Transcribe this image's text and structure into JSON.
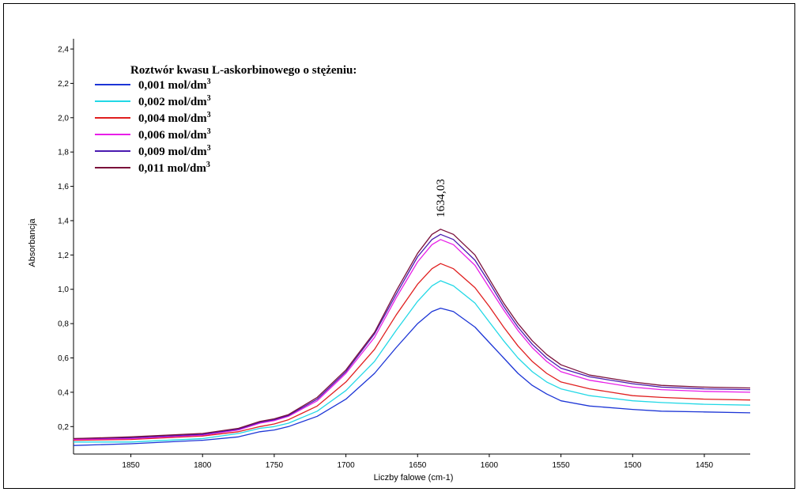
{
  "chart_data": {
    "type": "line",
    "xlabel": "Liczby falowe (cm-1)",
    "ylabel": "Absorbancja",
    "xlim": [
      1890,
      1418
    ],
    "ylim": [
      0.04,
      2.46
    ],
    "x_reversed": true,
    "grid": false,
    "legend_position": "top-left",
    "legend_title": "Roztwór kwasu L-askorbinowego o stężeniu:",
    "x_ticks": [
      1850,
      1800,
      1750,
      1700,
      1650,
      1600,
      1550,
      1500,
      1450
    ],
    "y_ticks": [
      "0,2",
      "0,4",
      "0,6",
      "0,8",
      "1,0",
      "1,2",
      "1,4",
      "1,6",
      "1,8",
      "2,0",
      "2,2",
      "2,4"
    ],
    "annotation": {
      "text": "1634,03",
      "x": 1634.03
    },
    "series": [
      {
        "name": "0,001 mol/dm3",
        "unit_base": "0,001 mol/dm",
        "unit_sup": "3",
        "color": "#1c35d6",
        "points": [
          [
            1890,
            0.09
          ],
          [
            1850,
            0.1
          ],
          [
            1800,
            0.12
          ],
          [
            1775,
            0.14
          ],
          [
            1760,
            0.17
          ],
          [
            1750,
            0.18
          ],
          [
            1740,
            0.2
          ],
          [
            1720,
            0.26
          ],
          [
            1700,
            0.36
          ],
          [
            1680,
            0.51
          ],
          [
            1665,
            0.66
          ],
          [
            1650,
            0.8
          ],
          [
            1640,
            0.87
          ],
          [
            1634,
            0.89
          ],
          [
            1625,
            0.87
          ],
          [
            1610,
            0.78
          ],
          [
            1600,
            0.69
          ],
          [
            1590,
            0.6
          ],
          [
            1580,
            0.51
          ],
          [
            1570,
            0.44
          ],
          [
            1560,
            0.39
          ],
          [
            1550,
            0.35
          ],
          [
            1530,
            0.32
          ],
          [
            1500,
            0.3
          ],
          [
            1480,
            0.29
          ],
          [
            1450,
            0.285
          ],
          [
            1418,
            0.28
          ]
        ]
      },
      {
        "name": "0,002 mol/dm3",
        "unit_base": "0,002 mol/dm",
        "unit_sup": "3",
        "color": "#22d8e6",
        "points": [
          [
            1890,
            0.11
          ],
          [
            1850,
            0.11
          ],
          [
            1800,
            0.13
          ],
          [
            1775,
            0.16
          ],
          [
            1760,
            0.19
          ],
          [
            1750,
            0.2
          ],
          [
            1740,
            0.22
          ],
          [
            1720,
            0.29
          ],
          [
            1700,
            0.41
          ],
          [
            1680,
            0.58
          ],
          [
            1665,
            0.76
          ],
          [
            1650,
            0.93
          ],
          [
            1640,
            1.02
          ],
          [
            1634,
            1.05
          ],
          [
            1625,
            1.02
          ],
          [
            1610,
            0.92
          ],
          [
            1600,
            0.81
          ],
          [
            1590,
            0.7
          ],
          [
            1580,
            0.6
          ],
          [
            1570,
            0.52
          ],
          [
            1560,
            0.46
          ],
          [
            1550,
            0.42
          ],
          [
            1530,
            0.38
          ],
          [
            1500,
            0.35
          ],
          [
            1480,
            0.34
          ],
          [
            1450,
            0.33
          ],
          [
            1418,
            0.325
          ]
        ]
      },
      {
        "name": "0,004 mol/dm3",
        "unit_base": "0,004 mol/dm",
        "unit_sup": "3",
        "color": "#e01f1f",
        "points": [
          [
            1890,
            0.12
          ],
          [
            1850,
            0.125
          ],
          [
            1800,
            0.145
          ],
          [
            1775,
            0.17
          ],
          [
            1760,
            0.2
          ],
          [
            1750,
            0.215
          ],
          [
            1740,
            0.24
          ],
          [
            1720,
            0.32
          ],
          [
            1700,
            0.46
          ],
          [
            1680,
            0.65
          ],
          [
            1665,
            0.85
          ],
          [
            1650,
            1.03
          ],
          [
            1640,
            1.12
          ],
          [
            1634,
            1.15
          ],
          [
            1625,
            1.12
          ],
          [
            1610,
            1.01
          ],
          [
            1600,
            0.9
          ],
          [
            1590,
            0.78
          ],
          [
            1580,
            0.67
          ],
          [
            1570,
            0.58
          ],
          [
            1560,
            0.51
          ],
          [
            1550,
            0.46
          ],
          [
            1530,
            0.42
          ],
          [
            1500,
            0.38
          ],
          [
            1480,
            0.37
          ],
          [
            1450,
            0.36
          ],
          [
            1418,
            0.355
          ]
        ]
      },
      {
        "name": "0,006 mol/dm3",
        "unit_base": "0,006 mol/dm",
        "unit_sup": "3",
        "color": "#e81ee8",
        "points": [
          [
            1890,
            0.125
          ],
          [
            1850,
            0.13
          ],
          [
            1800,
            0.15
          ],
          [
            1775,
            0.18
          ],
          [
            1760,
            0.22
          ],
          [
            1750,
            0.235
          ],
          [
            1740,
            0.26
          ],
          [
            1720,
            0.35
          ],
          [
            1700,
            0.51
          ],
          [
            1680,
            0.72
          ],
          [
            1665,
            0.95
          ],
          [
            1650,
            1.16
          ],
          [
            1640,
            1.26
          ],
          [
            1634,
            1.29
          ],
          [
            1625,
            1.26
          ],
          [
            1610,
            1.14
          ],
          [
            1600,
            1.01
          ],
          [
            1590,
            0.88
          ],
          [
            1580,
            0.76
          ],
          [
            1570,
            0.66
          ],
          [
            1560,
            0.58
          ],
          [
            1550,
            0.52
          ],
          [
            1530,
            0.47
          ],
          [
            1500,
            0.43
          ],
          [
            1480,
            0.415
          ],
          [
            1450,
            0.405
          ],
          [
            1418,
            0.4
          ]
        ]
      },
      {
        "name": "0,009 mol/dm3",
        "unit_base": "0,009 mol/dm",
        "unit_sup": "3",
        "color": "#4a1ab0",
        "points": [
          [
            1890,
            0.13
          ],
          [
            1850,
            0.135
          ],
          [
            1800,
            0.155
          ],
          [
            1775,
            0.185
          ],
          [
            1760,
            0.225
          ],
          [
            1750,
            0.24
          ],
          [
            1740,
            0.265
          ],
          [
            1720,
            0.36
          ],
          [
            1700,
            0.52
          ],
          [
            1680,
            0.74
          ],
          [
            1665,
            0.97
          ],
          [
            1650,
            1.19
          ],
          [
            1640,
            1.29
          ],
          [
            1634,
            1.32
          ],
          [
            1625,
            1.29
          ],
          [
            1610,
            1.17
          ],
          [
            1600,
            1.04
          ],
          [
            1590,
            0.9
          ],
          [
            1580,
            0.78
          ],
          [
            1570,
            0.68
          ],
          [
            1560,
            0.6
          ],
          [
            1550,
            0.54
          ],
          [
            1530,
            0.49
          ],
          [
            1500,
            0.45
          ],
          [
            1480,
            0.43
          ],
          [
            1450,
            0.42
          ],
          [
            1418,
            0.415
          ]
        ]
      },
      {
        "name": "0,011 mol/dm3",
        "unit_base": "0,011 mol/dm",
        "unit_sup": "3",
        "color": "#7a0f3a",
        "points": [
          [
            1890,
            0.13
          ],
          [
            1850,
            0.14
          ],
          [
            1800,
            0.16
          ],
          [
            1775,
            0.19
          ],
          [
            1760,
            0.23
          ],
          [
            1750,
            0.245
          ],
          [
            1740,
            0.27
          ],
          [
            1720,
            0.37
          ],
          [
            1700,
            0.53
          ],
          [
            1680,
            0.75
          ],
          [
            1665,
            0.99
          ],
          [
            1650,
            1.21
          ],
          [
            1640,
            1.32
          ],
          [
            1634,
            1.35
          ],
          [
            1625,
            1.32
          ],
          [
            1610,
            1.2
          ],
          [
            1600,
            1.06
          ],
          [
            1590,
            0.92
          ],
          [
            1580,
            0.8
          ],
          [
            1570,
            0.7
          ],
          [
            1560,
            0.62
          ],
          [
            1550,
            0.56
          ],
          [
            1530,
            0.5
          ],
          [
            1500,
            0.46
          ],
          [
            1480,
            0.44
          ],
          [
            1450,
            0.43
          ],
          [
            1418,
            0.425
          ]
        ]
      }
    ]
  }
}
